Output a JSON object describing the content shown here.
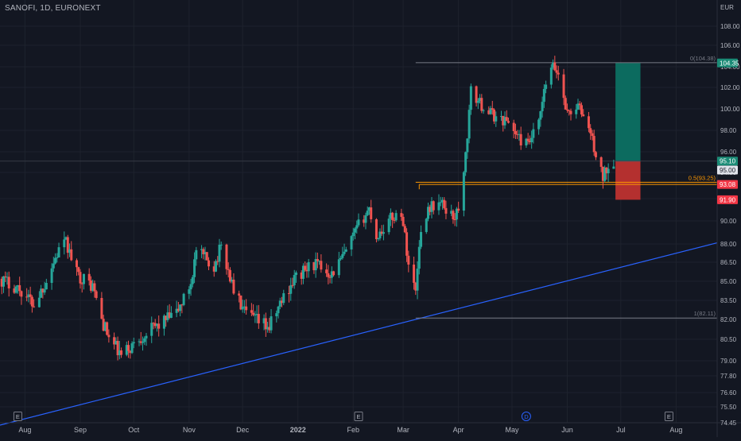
{
  "header": {
    "symbol_title": "SANOFI, 1D, EURONEXT"
  },
  "colors": {
    "background": "#131722",
    "grid": "#1e222d",
    "up_candle": "#26a69a",
    "down_candle": "#ef5350",
    "trendline": "#2962ff",
    "fib_line": "#787b86",
    "fib_05_line": "#ff9800",
    "target_zone": "#0c6b5f",
    "stop_zone": "#b4302f",
    "axis_text": "#b2b5be"
  },
  "chart_data": {
    "type": "candlestick",
    "title": "SANOFI, 1D, EURONEXT",
    "currency_label": "EUR",
    "ylim": [
      74.45,
      109.4
    ],
    "y_ticks": [
      "74.45",
      "75.50",
      "76.60",
      "77.80",
      "79.00",
      "80.50",
      "82.00",
      "83.50",
      "85.00",
      "86.50",
      "88.00",
      "90.00",
      "92.00",
      "94.00",
      "96.00",
      "98.00",
      "100.00",
      "102.00",
      "104.00",
      "106.00",
      "108.00"
    ],
    "x_ticks": [
      "Aug",
      "Sep",
      "Oct",
      "Nov",
      "Dec",
      "2022",
      "Feb",
      "Mar",
      "Apr",
      "May",
      "Jun",
      "Jul",
      "Aug"
    ],
    "x_range": [
      "2021-07-18",
      "2022-08-24"
    ],
    "price_anchors": [
      [
        "2021-07-18",
        85.2
      ],
      [
        "2021-07-28",
        84.5
      ],
      [
        "2021-08-06",
        83.2
      ],
      [
        "2021-08-12",
        84.8
      ],
      [
        "2021-08-20",
        87.5
      ],
      [
        "2021-08-24",
        88.1
      ],
      [
        "2021-08-30",
        85.6
      ],
      [
        "2021-09-08",
        84.6
      ],
      [
        "2021-09-13",
        82.0
      ],
      [
        "2021-09-17",
        80.6
      ],
      [
        "2021-09-24",
        79.3
      ],
      [
        "2021-10-06",
        80.8
      ],
      [
        "2021-10-18",
        81.9
      ],
      [
        "2021-10-25",
        82.5
      ],
      [
        "2021-10-29",
        83.6
      ],
      [
        "2021-11-02",
        84.9
      ],
      [
        "2021-11-05",
        87.4
      ],
      [
        "2021-11-15",
        86.2
      ],
      [
        "2021-11-19",
        87.8
      ],
      [
        "2021-11-26",
        84.3
      ],
      [
        "2021-12-02",
        82.5
      ],
      [
        "2021-12-10",
        81.8
      ],
      [
        "2021-12-16",
        81.4
      ],
      [
        "2021-12-24",
        83.8
      ],
      [
        "2021-12-30",
        85.2
      ],
      [
        "2022-01-10",
        86.4
      ],
      [
        "2022-01-20",
        85.6
      ],
      [
        "2022-01-28",
        87.3
      ],
      [
        "2022-02-04",
        89.6
      ],
      [
        "2022-02-10",
        91.1
      ],
      [
        "2022-02-14",
        88.6
      ],
      [
        "2022-02-22",
        90.2
      ],
      [
        "2022-02-28",
        90.8
      ],
      [
        "2022-03-04",
        86.4
      ],
      [
        "2022-03-08",
        84.2
      ],
      [
        "2022-03-10",
        88.2
      ],
      [
        "2022-03-15",
        91.2
      ],
      [
        "2022-03-22",
        91.6
      ],
      [
        "2022-03-29",
        90.4
      ],
      [
        "2022-04-01",
        90.8
      ],
      [
        "2022-04-05",
        95.6
      ],
      [
        "2022-04-08",
        101.6
      ],
      [
        "2022-04-14",
        100.3
      ],
      [
        "2022-04-22",
        99.2
      ],
      [
        "2022-04-29",
        98.8
      ],
      [
        "2022-05-05",
        97.2
      ],
      [
        "2022-05-10",
        96.6
      ],
      [
        "2022-05-16",
        98.6
      ],
      [
        "2022-05-20",
        102.4
      ],
      [
        "2022-05-24",
        104.0
      ],
      [
        "2022-05-27",
        103.3
      ],
      [
        "2022-06-01",
        99.6
      ],
      [
        "2022-06-07",
        100.2
      ],
      [
        "2022-06-10",
        99.4
      ],
      [
        "2022-06-14",
        97.8
      ],
      [
        "2022-06-17",
        95.6
      ],
      [
        "2022-06-21",
        93.6
      ],
      [
        "2022-06-23",
        94.4
      ],
      [
        "2022-06-27",
        95.1
      ]
    ],
    "trendline": {
      "from": [
        "2021-07-18",
        74.3
      ],
      "to": [
        "2022-08-24",
        88.1
      ]
    },
    "fib_retracement": {
      "from_date": "2022-03-08",
      "to_date": "2022-08-24",
      "low_date": "2022-03-08",
      "level_1_label": "1(82.11)",
      "level_1_value": 82.11,
      "level_05_label": "0.5(93.25)",
      "level_05_value": 93.25,
      "level_0_label": "0(104.38)",
      "level_0_value": 104.38
    },
    "support_line": {
      "from_date": "2022-03-10",
      "to_date": "2022-08-24",
      "value": 93.08
    },
    "position": {
      "from_date": "2022-06-28",
      "to_date": "2022-07-12",
      "entry": 95.1,
      "target": 104.35,
      "stop": 91.9
    },
    "price_labels": [
      {
        "text": "104.35",
        "value": 104.35,
        "kind": "target"
      },
      {
        "text": "95.10",
        "value": 95.1,
        "kind": "entry"
      },
      {
        "text": "95.00",
        "value": 95.0,
        "kind": "last"
      },
      {
        "text": "93.08",
        "value": 93.08,
        "kind": "support"
      },
      {
        "text": "91.90",
        "value": 91.9,
        "kind": "stop"
      }
    ],
    "events": [
      {
        "text": "E",
        "date": "2021-07-28",
        "kind": "earnings"
      },
      {
        "text": "E",
        "date": "2022-02-04",
        "kind": "earnings"
      },
      {
        "text": "D",
        "date": "2022-05-09",
        "kind": "dividend"
      },
      {
        "text": "E",
        "date": "2022-07-28",
        "kind": "earnings"
      }
    ]
  }
}
